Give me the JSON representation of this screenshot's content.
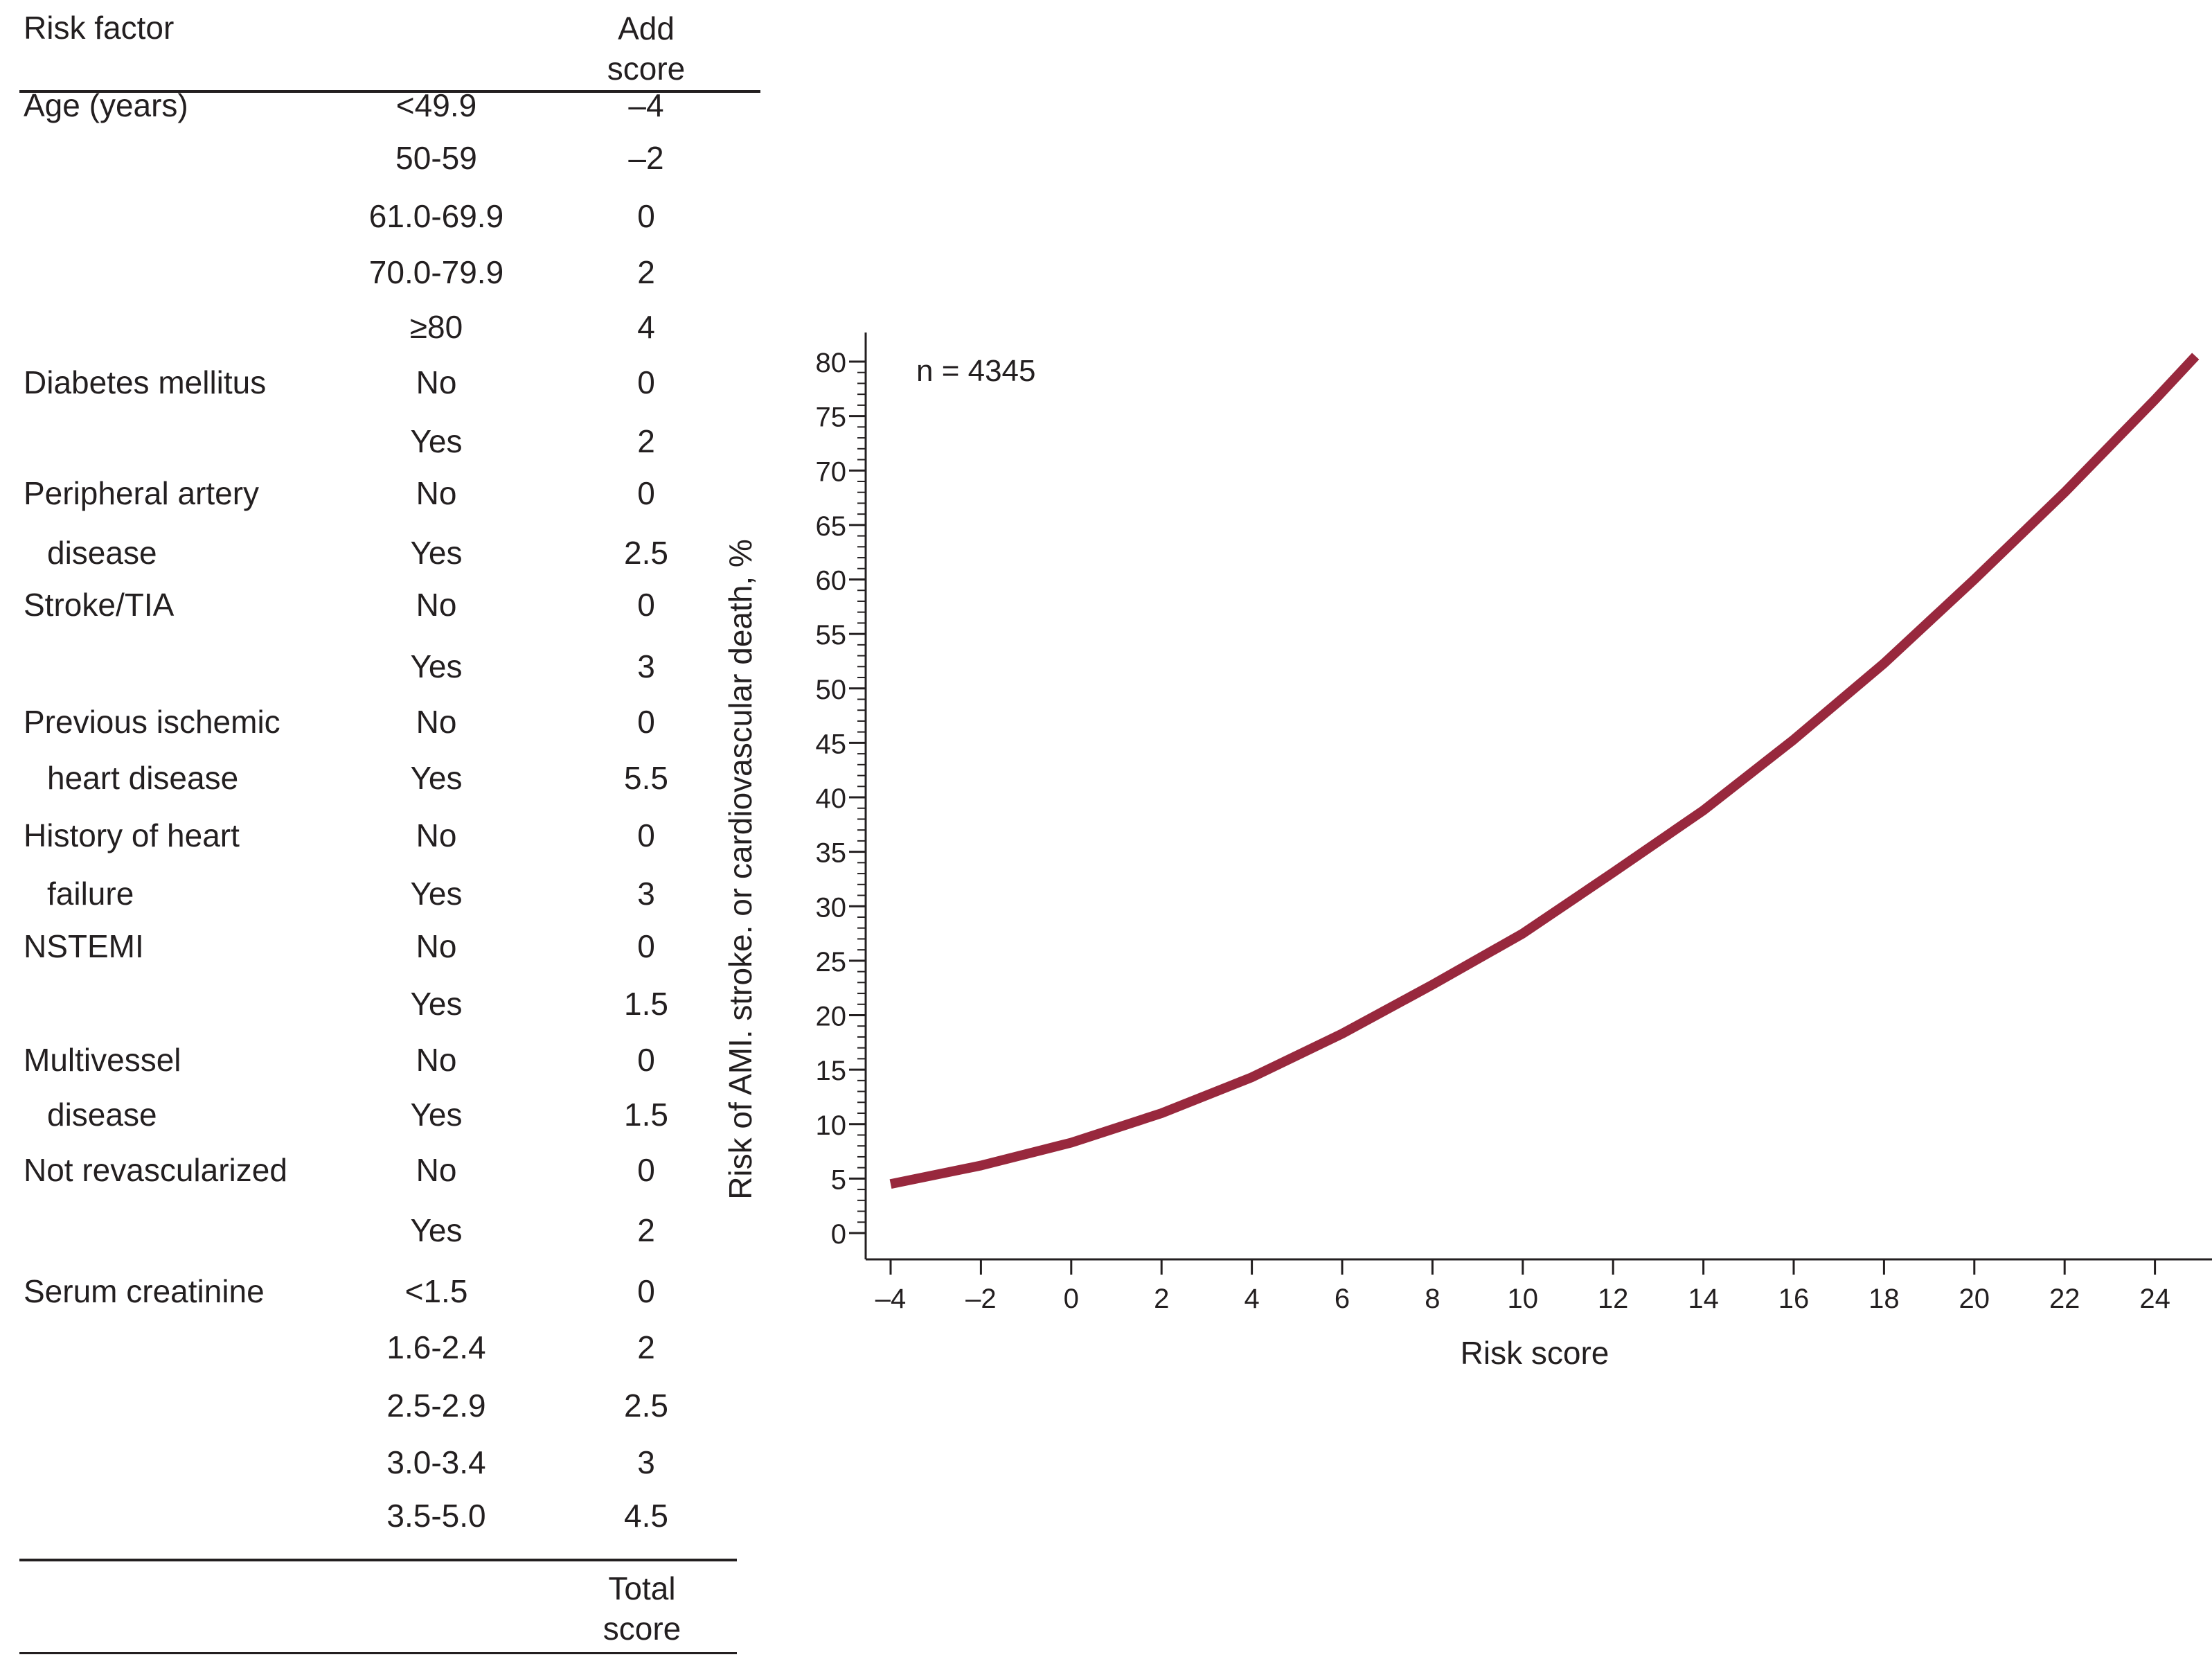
{
  "table": {
    "header": {
      "factor": "Risk factor",
      "score_line1": "Add",
      "score_line2": "score"
    },
    "footer": {
      "line1": "Total",
      "line2": "score"
    },
    "rows": [
      {
        "factor": "Age (years)",
        "level": "<49.9",
        "score": "–4"
      },
      {
        "factor": "",
        "level": "50-59",
        "score": "–2"
      },
      {
        "factor": "",
        "level": "61.0-69.9",
        "score": "0"
      },
      {
        "factor": "",
        "level": "70.0-79.9",
        "score": "2"
      },
      {
        "factor": "",
        "level": "≥80",
        "score": "4"
      },
      {
        "factor": "Diabetes mellitus",
        "level": "No",
        "score": "0"
      },
      {
        "factor": "",
        "level": "Yes",
        "score": "2"
      },
      {
        "factor": "Peripheral artery",
        "level": "No",
        "score": "0"
      },
      {
        "factor": "disease",
        "level": "Yes",
        "score": "2.5"
      },
      {
        "factor": "Stroke/TIA",
        "level": "No",
        "score": "0"
      },
      {
        "factor": "",
        "level": "Yes",
        "score": "3"
      },
      {
        "factor": "Previous ischemic",
        "level": "No",
        "score": "0"
      },
      {
        "factor": "heart disease",
        "level": "Yes",
        "score": "5.5"
      },
      {
        "factor": "History of heart",
        "level": "No",
        "score": "0"
      },
      {
        "factor": "failure",
        "level": "Yes",
        "score": "3"
      },
      {
        "factor": "NSTEMI",
        "level": "No",
        "score": "0"
      },
      {
        "factor": "",
        "level": "Yes",
        "score": "1.5"
      },
      {
        "factor": "Multivessel",
        "level": "No",
        "score": "0"
      },
      {
        "factor": "disease",
        "level": "Yes",
        "score": "1.5"
      },
      {
        "factor": "Not revascularized",
        "level": "No",
        "score": "0"
      },
      {
        "factor": "",
        "level": "Yes",
        "score": "2"
      },
      {
        "factor": "Serum creatinine",
        "level": "<1.5",
        "score": "0"
      },
      {
        "factor": "",
        "level": "1.6-2.4",
        "score": "2"
      },
      {
        "factor": "",
        "level": "2.5-2.9",
        "score": "2.5"
      },
      {
        "factor": "",
        "level": "3.0-3.4",
        "score": "3"
      },
      {
        "factor": "",
        "level": "3.5-5.0",
        "score": "4.5"
      }
    ]
  },
  "chart_data": {
    "type": "line",
    "annotation": "n = 4345",
    "xlabel": "Risk score",
    "ylabel": "Risk of AMI. stroke. or cardiovascular death, %",
    "xlim": [
      -4.6,
      24.9
    ],
    "ylim": [
      0,
      80
    ],
    "x_ticks": [
      -4,
      -2,
      0,
      2,
      4,
      6,
      8,
      10,
      12,
      14,
      16,
      18,
      20,
      22,
      24
    ],
    "x_tick_labels": [
      "–4",
      "–2",
      "0",
      "2",
      "4",
      "6",
      "8",
      "10",
      "12",
      "14",
      "16",
      "18",
      "20",
      "22",
      "24"
    ],
    "y_ticks": [
      0,
      5,
      10,
      15,
      20,
      25,
      30,
      35,
      40,
      45,
      50,
      55,
      60,
      65,
      70,
      75,
      80
    ],
    "y_minor_step": 1,
    "grid": false,
    "line_color": "#98283d",
    "series": [
      {
        "x": [
          -4,
          -2,
          0,
          2,
          4,
          6,
          8,
          10,
          12,
          14,
          16,
          18,
          20,
          22,
          24,
          24.9
        ],
        "values": [
          4.5,
          6.2,
          8.3,
          11.0,
          14.3,
          18.3,
          22.8,
          27.5,
          33.1,
          38.8,
          45.3,
          52.3,
          60.0,
          68.0,
          76.5,
          80.5
        ]
      }
    ]
  }
}
